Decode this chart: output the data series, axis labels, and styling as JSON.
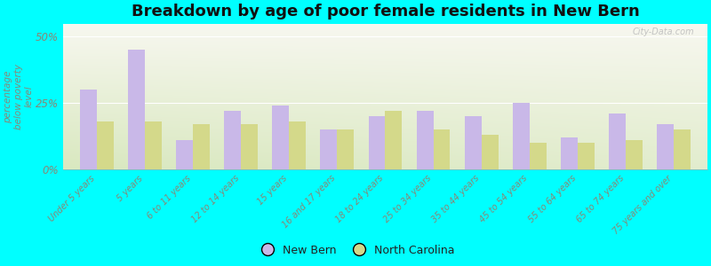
{
  "title": "Breakdown by age of poor female residents in New Bern",
  "categories": [
    "Under 5 years",
    "5 years",
    "6 to 11 years",
    "12 to 14 years",
    "15 years",
    "16 and 17 years",
    "18 to 24 years",
    "25 to 34 years",
    "35 to 44 years",
    "45 to 54 years",
    "55 to 64 years",
    "65 to 74 years",
    "75 years and over"
  ],
  "new_bern": [
    30,
    45,
    11,
    22,
    24,
    15,
    20,
    22,
    20,
    25,
    12,
    21,
    17
  ],
  "north_carolina": [
    18,
    18,
    17,
    17,
    18,
    15,
    22,
    15,
    13,
    10,
    10,
    11,
    15
  ],
  "new_bern_color": "#c9b8e8",
  "nc_color": "#d4d98a",
  "background_color": "#00ffff",
  "plot_bg_color": "#f0f0e0",
  "ylabel": "percentage\nbelow poverty\nlevel",
  "ylim": [
    0,
    55
  ],
  "yticks": [
    0,
    25,
    50
  ],
  "ytick_labels": [
    "0%",
    "25%",
    "50%"
  ],
  "title_fontsize": 13,
  "tick_color": "#888877",
  "watermark": "City-Data.com",
  "legend_new_bern": "New Bern",
  "legend_nc": "North Carolina"
}
